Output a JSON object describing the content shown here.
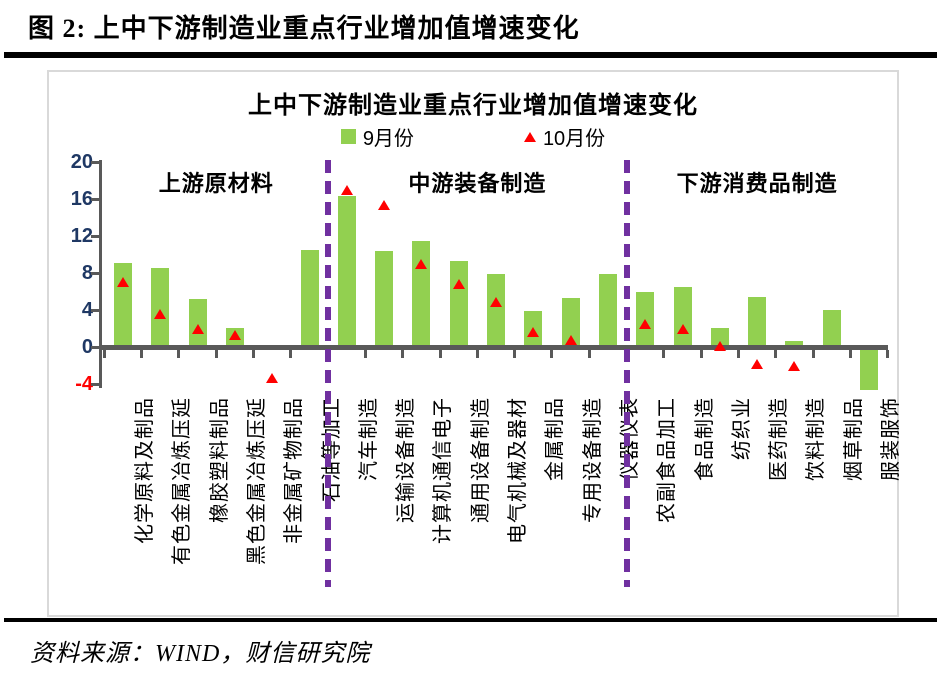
{
  "figure": {
    "caption": "图 2:  上中下游制造业重点行业增加值增速变化",
    "source": "资料来源：WIND，财信研究院"
  },
  "chart_data": {
    "type": "bar",
    "title": "上中下游制造业重点行业增加值增速变化",
    "legend": [
      {
        "label": "9月份",
        "marker": "square",
        "color": "#92D050"
      },
      {
        "label": "10月份",
        "marker": "triangle",
        "color": "#FF0000"
      }
    ],
    "y_ticks": [
      20,
      16,
      12,
      8,
      4,
      0,
      -4
    ],
    "ylim": [
      -5.2,
      20
    ],
    "grid": false,
    "legend_position": "top",
    "sections": [
      {
        "label": "上游原材料",
        "from": 0,
        "to": 5
      },
      {
        "label": "中游装备制造",
        "from": 6,
        "to": 13
      },
      {
        "label": "下游消费品制造",
        "from": 14,
        "to": 20
      }
    ],
    "categories": [
      "化学原料及制品",
      "有色金属冶炼压延",
      "橡胶塑料制品",
      "黑色金属冶炼压延",
      "非金属矿物制品",
      "石油等加工",
      "汽车制造",
      "运输设备制造",
      "计算机通信电子",
      "通用设备制造",
      "电气机械及器材",
      "金属制品",
      "专用设备制造",
      "仪器仪表",
      "农副食品加工",
      "食品制造",
      "纺织业",
      "医药制造",
      "饮料制造",
      "烟草制品",
      "服装服饰"
    ],
    "series": [
      {
        "name": "9月份",
        "type": "bar",
        "values": [
          9.1,
          8.5,
          5.2,
          2.1,
          0.2,
          10.5,
          16.3,
          10.4,
          11.5,
          9.3,
          7.9,
          3.9,
          5.3,
          7.9,
          6.0,
          6.5,
          2.1,
          5.4,
          0.7,
          4.0,
          -4.6
        ]
      },
      {
        "name": "10月份",
        "type": "scatter",
        "values": [
          7.0,
          3.6,
          2.0,
          1.3,
          -3.4,
          null,
          17.0,
          15.4,
          9.0,
          6.8,
          4.9,
          1.6,
          0.8,
          null,
          2.5,
          2.0,
          0.1,
          -1.8,
          -2.0,
          null,
          null
        ]
      }
    ],
    "colors": {
      "bar": "#92D050",
      "marker": "#FF0000",
      "separator": "#7030A0",
      "axis": "#595959",
      "tick_label": "#1F3864",
      "negative_tick_label": "#FF0000"
    }
  }
}
